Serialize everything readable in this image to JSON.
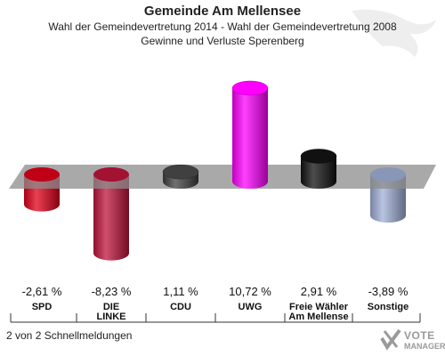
{
  "header": {
    "title": "Gemeinde Am Mellensee",
    "subtitle_line1": "Wahl der Gemeindevertretung 2014 - Wahl der Gemeindevertretung 2008",
    "subtitle_line2": "Gewinne und Verluste Sperenberg"
  },
  "footer": {
    "note": "2 von 2 Schnellmeldungen"
  },
  "logo": {
    "line1": "VOTE",
    "line2": "MANAGER",
    "icon": "checkmark-x-icon"
  },
  "chart_data": {
    "type": "bar",
    "title": "Gewinne und Verluste Sperenberg",
    "categories": [
      "SPD",
      "DIE LINKE",
      "CDU",
      "UWG",
      "Freie Wähler Am Mellensee",
      "Sonstige"
    ],
    "category_lines": [
      [
        "SPD"
      ],
      [
        "DIE",
        "LINKE"
      ],
      [
        "CDU"
      ],
      [
        "UWG"
      ],
      [
        "Freie Wähler",
        "Am Mellense"
      ],
      [
        "Sonstige"
      ]
    ],
    "values": [
      -2.61,
      -8.23,
      1.11,
      10.72,
      2.91,
      -3.89
    ],
    "value_labels": [
      "-2,61 %",
      "-8,23 %",
      "1,11 %",
      "10,72 %",
      "2,91 %",
      "-3,89 %"
    ],
    "colors": [
      "#e2001a",
      "#c0143c",
      "#404040",
      "#ff00ff",
      "#111111",
      "#a0b0d8"
    ],
    "ylim": [
      -8.23,
      10.72
    ]
  }
}
